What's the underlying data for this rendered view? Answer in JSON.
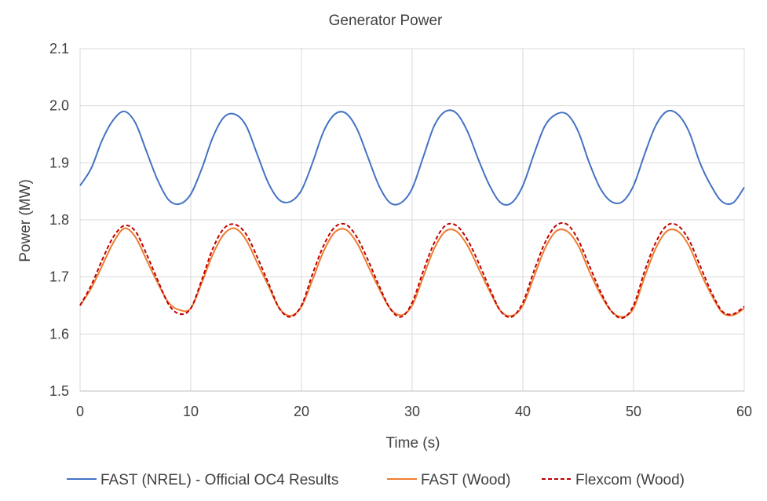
{
  "chart_data": {
    "type": "line",
    "title": "Generator Power",
    "xlabel": "Time (s)",
    "ylabel": "Power (MW)",
    "xlim": [
      0,
      60
    ],
    "ylim": [
      1.5,
      2.1
    ],
    "x_ticks": [
      "0",
      "10",
      "20",
      "30",
      "40",
      "50",
      "60"
    ],
    "y_ticks": [
      "1.5",
      "1.6",
      "1.7",
      "1.8",
      "1.9",
      "2.0",
      "2.1"
    ],
    "grid": "vertical and horizontal",
    "legend_position": "bottom",
    "x": [
      0,
      1,
      2,
      3,
      4,
      5,
      6,
      7,
      8,
      9,
      10,
      11,
      12,
      13,
      14,
      15,
      16,
      17,
      18,
      19,
      20,
      21,
      22,
      23,
      24,
      25,
      26,
      27,
      28,
      29,
      30,
      31,
      32,
      33,
      34,
      35,
      36,
      37,
      38,
      39,
      40,
      41,
      42,
      43,
      44,
      45,
      46,
      47,
      48,
      49,
      50,
      51,
      52,
      53,
      54,
      55,
      56,
      57,
      58,
      59,
      60
    ],
    "series": [
      {
        "name": "FAST (NREL) - Official OC4 Results",
        "color": "#4472C4",
        "dash": "solid",
        "values": [
          1.86,
          1.89,
          1.94,
          1.975,
          1.99,
          1.97,
          1.92,
          1.87,
          1.835,
          1.828,
          1.845,
          1.89,
          1.945,
          1.98,
          1.985,
          1.965,
          1.915,
          1.865,
          1.835,
          1.832,
          1.852,
          1.9,
          1.955,
          1.985,
          1.987,
          1.96,
          1.91,
          1.86,
          1.83,
          1.83,
          1.855,
          1.91,
          1.965,
          1.99,
          1.987,
          1.955,
          1.905,
          1.86,
          1.83,
          1.83,
          1.86,
          1.915,
          1.965,
          1.985,
          1.985,
          1.955,
          1.9,
          1.855,
          1.832,
          1.832,
          1.86,
          1.915,
          1.965,
          1.99,
          1.985,
          1.955,
          1.9,
          1.86,
          1.832,
          1.83,
          1.857
        ]
      },
      {
        "name": "FAST (Wood)",
        "color": "#ED7D31",
        "dash": "solid",
        "values": [
          1.65,
          1.68,
          1.72,
          1.76,
          1.785,
          1.77,
          1.73,
          1.69,
          1.655,
          1.642,
          1.645,
          1.69,
          1.74,
          1.775,
          1.785,
          1.765,
          1.725,
          1.685,
          1.645,
          1.632,
          1.648,
          1.695,
          1.745,
          1.778,
          1.783,
          1.76,
          1.72,
          1.68,
          1.645,
          1.633,
          1.65,
          1.7,
          1.75,
          1.78,
          1.78,
          1.755,
          1.715,
          1.675,
          1.64,
          1.632,
          1.65,
          1.7,
          1.75,
          1.78,
          1.78,
          1.755,
          1.71,
          1.67,
          1.64,
          1.63,
          1.645,
          1.7,
          1.75,
          1.78,
          1.78,
          1.755,
          1.71,
          1.67,
          1.638,
          1.633,
          1.645
        ]
      },
      {
        "name": "Flexcom (Wood)",
        "color": "#C00000",
        "dash": "dashed",
        "values": [
          1.65,
          1.685,
          1.73,
          1.77,
          1.79,
          1.78,
          1.74,
          1.695,
          1.652,
          1.635,
          1.645,
          1.695,
          1.75,
          1.785,
          1.792,
          1.775,
          1.735,
          1.69,
          1.645,
          1.63,
          1.65,
          1.705,
          1.755,
          1.787,
          1.792,
          1.77,
          1.73,
          1.685,
          1.645,
          1.63,
          1.655,
          1.71,
          1.76,
          1.79,
          1.79,
          1.765,
          1.725,
          1.68,
          1.64,
          1.63,
          1.655,
          1.71,
          1.76,
          1.79,
          1.792,
          1.765,
          1.72,
          1.675,
          1.64,
          1.628,
          1.65,
          1.71,
          1.76,
          1.79,
          1.79,
          1.765,
          1.72,
          1.675,
          1.64,
          1.635,
          1.648
        ]
      }
    ]
  }
}
